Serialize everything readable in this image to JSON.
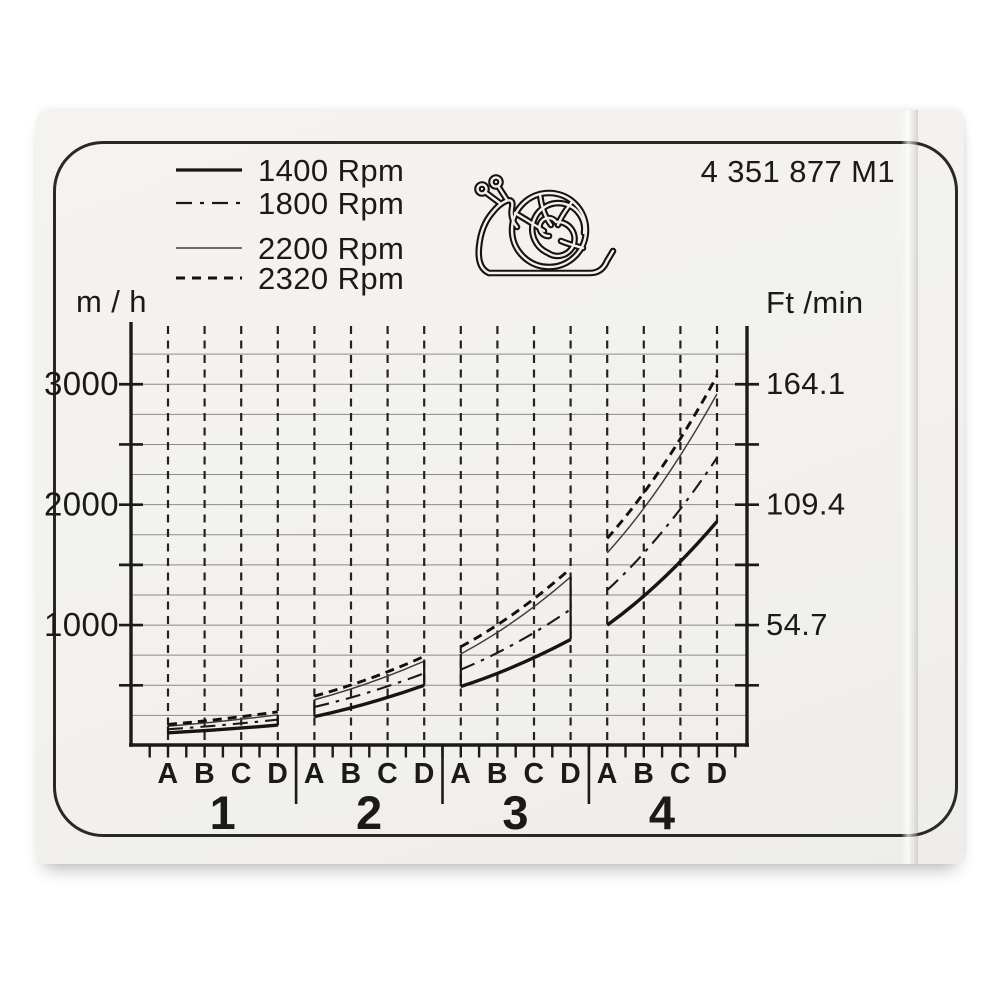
{
  "part_number": "4 351 877 M1",
  "legend": {
    "items": [
      {
        "label": "1400 Rpm",
        "style": "solid-thick"
      },
      {
        "label": "1800 Rpm",
        "style": "dash-dot"
      },
      {
        "label": "2200 Rpm",
        "style": "solid-thin"
      },
      {
        "label": "2320 Rpm",
        "style": "dashed"
      }
    ]
  },
  "icons": {
    "snail": "snail-outline-drawing"
  },
  "colors": {
    "ink": "#1c1a17",
    "label_background": "#f2f1ed",
    "thin_line": "#403e3a"
  },
  "chart_data": {
    "type": "line",
    "left_axis": {
      "label": "m / h",
      "tick_labels": [
        "1000",
        "2000",
        "3000"
      ],
      "tick_values": [
        1000,
        2000,
        3000
      ],
      "minor_tick_step": 500,
      "gridline_step": 250,
      "range": [
        0,
        3300
      ]
    },
    "right_axis": {
      "label": "Ft /min",
      "tick_labels": [
        "54.7",
        "109.4",
        "164.1"
      ]
    },
    "x_axis": {
      "group_labels": [
        "1",
        "2",
        "3",
        "4"
      ],
      "sub_labels": [
        "A",
        "B",
        "C",
        "D"
      ]
    },
    "series": [
      {
        "name": "1400 Rpm",
        "style": "solid-thick",
        "groups_mh": [
          [
            105,
            170
          ],
          [
            240,
            500
          ],
          [
            490,
            880
          ],
          [
            1000,
            1860
          ]
        ]
      },
      {
        "name": "1800 Rpm",
        "style": "dash-dot",
        "groups_mh": [
          [
            135,
            215
          ],
          [
            320,
            600
          ],
          [
            630,
            1130
          ],
          [
            1290,
            2390
          ]
        ]
      },
      {
        "name": "2200 Rpm",
        "style": "solid-thin",
        "groups_mh": [
          [
            160,
            255
          ],
          [
            380,
            700
          ],
          [
            760,
            1400
          ],
          [
            1600,
            2920
          ]
        ]
      },
      {
        "name": "2320 Rpm",
        "style": "dashed",
        "groups_mh": [
          [
            175,
            280
          ],
          [
            410,
            740
          ],
          [
            820,
            1470
          ],
          [
            1720,
            3070
          ]
        ]
      }
    ],
    "band_connector_groups": [
      1,
      2,
      3
    ],
    "grid": {
      "vertical": "dashed",
      "horizontal": "solid-thin"
    },
    "legend_position": "top-left"
  }
}
